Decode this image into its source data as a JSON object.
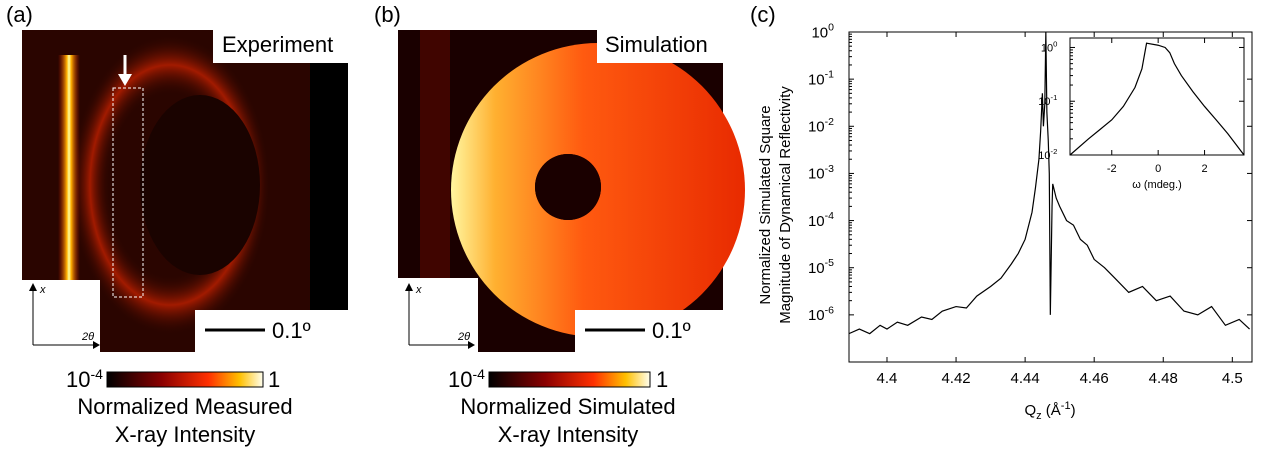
{
  "figure": {
    "panel_a": {
      "letter": "(a)",
      "label": "Experiment",
      "scale": "0.1º",
      "axis_x": "x",
      "axis_2theta": "2θ",
      "cbar_min": {
        "base": "10",
        "exp": "-4"
      },
      "cbar_max": "1",
      "caption": [
        "Normalized Measured",
        "X-ray Intensity"
      ]
    },
    "panel_b": {
      "letter": "(b)",
      "label": "Simulation",
      "scale": "0.1º",
      "axis_x": "x",
      "axis_2theta": "2θ",
      "cbar_min": {
        "base": "10",
        "exp": "-4"
      },
      "cbar_max": "1",
      "caption": [
        "Normalized Simulated",
        "X-ray Intensity"
      ]
    },
    "panel_c": {
      "letter": "(c)"
    }
  },
  "chart_data": [
    {
      "type": "line",
      "log_y": true,
      "color": "#000000",
      "y_label": [
        "Normalized Simulated Square",
        "Magnitude of Dynamical Reflectivity"
      ],
      "x_label": [
        "Q",
        "z",
        " (Å",
        "-1",
        ")"
      ],
      "x": [
        4.389,
        4.392,
        4.395,
        4.398,
        4.4,
        4.403,
        4.406,
        4.41,
        4.413,
        4.416,
        4.42,
        4.423,
        4.426,
        4.43,
        4.433,
        4.436,
        4.438,
        4.44,
        4.442,
        4.443,
        4.444,
        4.4445,
        4.445,
        4.4453,
        4.4457,
        4.446,
        4.4463,
        4.4467,
        4.447,
        4.4473,
        4.4478,
        4.448,
        4.449,
        4.45,
        4.452,
        4.454,
        4.456,
        4.458,
        4.46,
        4.463,
        4.466,
        4.47,
        4.474,
        4.478,
        4.482,
        4.486,
        4.49,
        4.494,
        4.498,
        4.502,
        4.505
      ],
      "values": [
        4e-07,
        5e-07,
        4e-07,
        6e-07,
        5e-07,
        7e-07,
        6e-07,
        9e-07,
        8e-07,
        1.2e-06,
        1.5e-06,
        1.4e-06,
        2.5e-06,
        4e-06,
        6e-06,
        1.2e-05,
        2e-05,
        4e-05,
        0.00015,
        0.0005,
        0.002,
        0.008,
        0.05,
        0.01,
        0.03,
        1,
        0.02,
        0.005,
        0.001,
        1e-06,
        0.0002,
        0.0006,
        0.0003,
        0.0002,
        0.0001,
        8e-05,
        4e-05,
        3e-05,
        1.5e-05,
        1e-05,
        6e-06,
        3e-06,
        4e-06,
        2e-06,
        2.5e-06,
        1.2e-06,
        1e-06,
        1.5e-06,
        6e-07,
        8e-07,
        5e-07
      ],
      "xlim": [
        4.389,
        4.5057
      ],
      "ylim": [
        1e-07,
        1
      ],
      "xticks": [
        4.4,
        4.42,
        4.44,
        4.46,
        4.48,
        4.5
      ],
      "yticks": [
        {
          "value": 1e-06,
          "label": "10",
          "exp": "-6"
        },
        {
          "value": 1e-05,
          "label": "10",
          "exp": "-5"
        },
        {
          "value": 0.0001,
          "label": "10",
          "exp": "-4"
        },
        {
          "value": 0.001,
          "label": "10",
          "exp": "-3"
        },
        {
          "value": 0.01,
          "label": "10",
          "exp": "-2"
        },
        {
          "value": 0.1,
          "label": "10",
          "exp": "-1"
        },
        {
          "value": 1,
          "label": "10",
          "exp": "0"
        }
      ]
    },
    {
      "type": "line",
      "log_y": true,
      "color": "#000000",
      "x_label": "ω (mdeg.)",
      "x": [
        -3.8,
        -3,
        -2.5,
        -2,
        -1.5,
        -1,
        -0.7,
        -0.5,
        0,
        0.3,
        0.5,
        0.7,
        1,
        1.5,
        2,
        2.5,
        3,
        3.7
      ],
      "values": [
        0.01,
        0.02,
        0.03,
        0.045,
        0.08,
        0.18,
        0.4,
        1.2,
        1.1,
        1.0,
        0.8,
        0.5,
        0.3,
        0.15,
        0.08,
        0.045,
        0.025,
        0.01
      ],
      "xlim": [
        -3.8,
        3.7
      ],
      "ylim": [
        0.01,
        1.5
      ],
      "xticks": [
        -2,
        0,
        2
      ],
      "yticks": [
        {
          "value": 0.01,
          "label": "10",
          "exp": "-2"
        },
        {
          "value": 0.1,
          "label": "10",
          "exp": "-1"
        },
        {
          "value": 1,
          "label": "10",
          "exp": "0"
        }
      ]
    }
  ]
}
